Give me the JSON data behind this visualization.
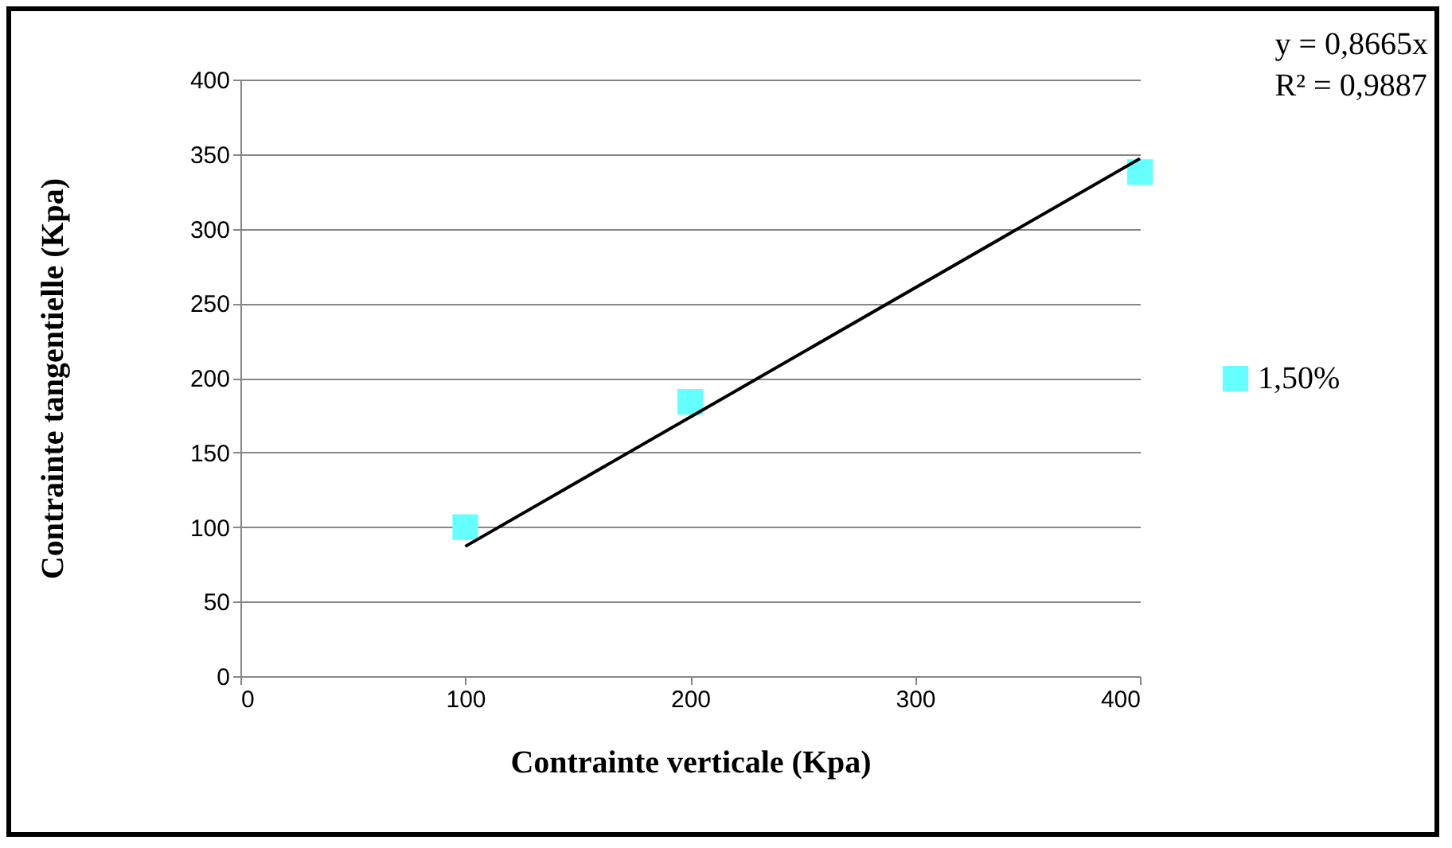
{
  "chart_data": {
    "type": "scatter",
    "xlabel": "Contrainte verticale (Kpa)",
    "ylabel": "Contrainte tangentielle (Kpa)",
    "annotations": [
      "y = 0,8665x",
      "R² = 0,9887"
    ],
    "series": [
      {
        "name": "1,50%",
        "color": "#66ffff",
        "x": [
          100,
          200,
          400
        ],
        "values": [
          100,
          184,
          338
        ]
      },
      {
        "type": "line",
        "color": "#000000",
        "marker": "none",
        "x": [
          100,
          400
        ],
        "values": [
          87,
          347
        ]
      }
    ],
    "xlim": [
      0,
      400
    ],
    "xticks": [
      0,
      100,
      200,
      300,
      400
    ],
    "ylim": [
      0,
      400
    ],
    "yticks": [
      0,
      50,
      100,
      150,
      200,
      250,
      300,
      350,
      400
    ],
    "grid": "y",
    "legend": "right",
    "marker": "square"
  }
}
